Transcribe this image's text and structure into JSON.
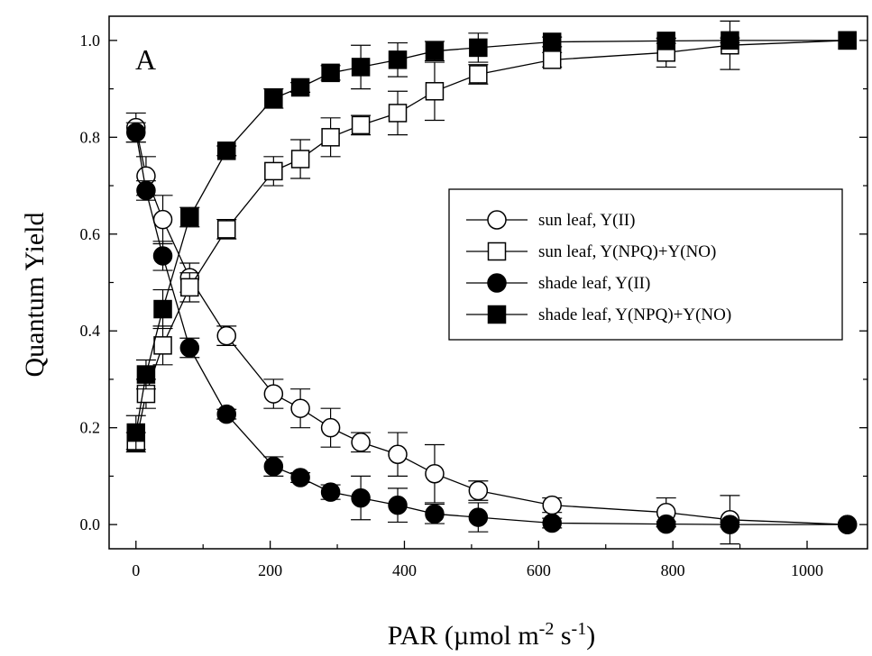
{
  "chart_data": {
    "type": "scatter",
    "panel_label": "A",
    "xlabel": {
      "main": "PAR (µmol m",
      "sup1": "-2",
      "mid": " s",
      "sup2": "-1",
      "end": ")"
    },
    "ylabel": "Quantum Yield",
    "xlim": [
      -40,
      1090
    ],
    "ylim": [
      -0.05,
      1.05
    ],
    "xticks": [
      0,
      200,
      400,
      600,
      800,
      1000
    ],
    "yticks": [
      0.0,
      0.2,
      0.4,
      0.6,
      0.8,
      1.0
    ],
    "xtick_labels": [
      "0",
      "200",
      "400",
      "600",
      "800",
      "1000"
    ],
    "ytick_labels": [
      "0.0",
      "0.2",
      "0.4",
      "0.6",
      "0.8",
      "1.0"
    ],
    "grid": false,
    "legend_position": "right",
    "x": [
      0,
      15,
      40,
      80,
      135,
      205,
      245,
      290,
      335,
      390,
      445,
      510,
      620,
      790,
      885,
      1060
    ],
    "series": [
      {
        "name": "sun leaf, Y(II)",
        "marker": "circle",
        "fill": "#ffffff",
        "values": [
          0.82,
          0.72,
          0.63,
          0.51,
          0.39,
          0.27,
          0.24,
          0.2,
          0.17,
          0.145,
          0.105,
          0.07,
          0.04,
          0.025,
          0.01,
          0.0
        ],
        "errors": [
          0.03,
          0.04,
          0.05,
          0.03,
          0.02,
          0.03,
          0.04,
          0.04,
          0.02,
          0.045,
          0.06,
          0.02,
          0.015,
          0.03,
          0.05,
          0.0
        ]
      },
      {
        "name": "sun leaf, Y(NPQ)+Y(NO)",
        "marker": "square",
        "fill": "#ffffff",
        "values": [
          0.17,
          0.27,
          0.37,
          0.49,
          0.61,
          0.73,
          0.755,
          0.8,
          0.825,
          0.85,
          0.895,
          0.93,
          0.96,
          0.975,
          0.99,
          1.0
        ],
        "errors": [
          0.02,
          0.03,
          0.04,
          0.03,
          0.02,
          0.03,
          0.04,
          0.04,
          0.02,
          0.045,
          0.06,
          0.02,
          0.015,
          0.03,
          0.05,
          0.0
        ]
      },
      {
        "name": "shade leaf, Y(II)",
        "marker": "circle",
        "fill": "#000000",
        "values": [
          0.81,
          0.69,
          0.555,
          0.365,
          0.228,
          0.12,
          0.097,
          0.067,
          0.055,
          0.04,
          0.022,
          0.015,
          0.003,
          0.001,
          0.0,
          0.0
        ],
        "errors": [
          0.02,
          0.02,
          0.03,
          0.02,
          0.01,
          0.02,
          0.01,
          0.015,
          0.045,
          0.035,
          0.02,
          0.03,
          0.01,
          0.005,
          0.005,
          0.0
        ]
      },
      {
        "name": "shade leaf, Y(NPQ)+Y(NO)",
        "marker": "square",
        "fill": "#000000",
        "values": [
          0.19,
          0.31,
          0.445,
          0.635,
          0.772,
          0.88,
          0.903,
          0.933,
          0.945,
          0.96,
          0.978,
          0.985,
          0.997,
          0.999,
          1.0,
          1.0
        ],
        "errors": [
          0.035,
          0.03,
          0.04,
          0.02,
          0.01,
          0.02,
          0.01,
          0.015,
          0.045,
          0.035,
          0.02,
          0.03,
          0.01,
          0.005,
          0.005,
          0.0
        ]
      }
    ]
  }
}
